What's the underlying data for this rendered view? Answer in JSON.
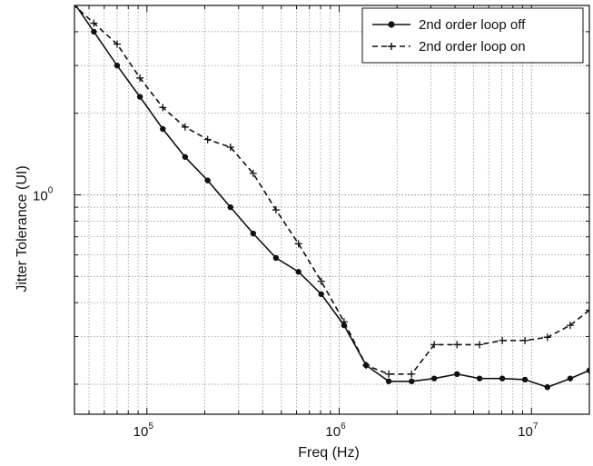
{
  "chart_data": {
    "type": "line",
    "x_scale": "log",
    "y_scale": "log",
    "xlabel": "Freq (Hz)",
    "ylabel": "Jitter Tolerance (UI)",
    "xlim": [
      42000,
      20000000
    ],
    "ylim": [
      0.155,
      5.0
    ],
    "grid": true,
    "legend": "top-right",
    "x_ticks": [
      {
        "value": 100000,
        "base": "10",
        "exp": "5"
      },
      {
        "value": 1000000,
        "base": "10",
        "exp": "6"
      },
      {
        "value": 10000000,
        "base": "10",
        "exp": "7"
      }
    ],
    "y_ticks": [
      {
        "value": 1,
        "base": "10",
        "exp": "0"
      }
    ],
    "series": [
      {
        "name": "2nd order loop off",
        "color": "#111111",
        "dash": "solid",
        "marker": "dot",
        "x": [
          53000,
          70000,
          92000,
          121000,
          158000,
          207000,
          272000,
          357000,
          469000,
          614000,
          806000,
          1060000,
          1380000,
          1810000,
          2380000,
          3120000,
          4100000,
          5370000,
          7050000,
          9250000,
          12100000,
          15900000,
          20000000
        ],
        "y": [
          4.0,
          3.0,
          2.3,
          1.75,
          1.38,
          1.13,
          0.9,
          0.72,
          0.585,
          0.52,
          0.43,
          0.33,
          0.235,
          0.205,
          0.205,
          0.21,
          0.218,
          0.21,
          0.21,
          0.208,
          0.195,
          0.21,
          0.225
        ]
      },
      {
        "name": "2nd order loop on",
        "color": "#111111",
        "dash": "dashed",
        "marker": "plus",
        "x": [
          53000,
          70000,
          92000,
          121000,
          158000,
          207000,
          272000,
          357000,
          469000,
          614000,
          806000,
          1060000,
          1380000,
          1810000,
          2380000,
          3120000,
          4100000,
          5370000,
          7050000,
          9250000,
          12100000,
          15900000,
          20000000
        ],
        "y": [
          4.3,
          3.6,
          2.7,
          2.1,
          1.78,
          1.6,
          1.5,
          1.2,
          0.88,
          0.66,
          0.48,
          0.34,
          0.235,
          0.218,
          0.218,
          0.28,
          0.28,
          0.28,
          0.29,
          0.29,
          0.298,
          0.33,
          0.375
        ]
      }
    ]
  }
}
